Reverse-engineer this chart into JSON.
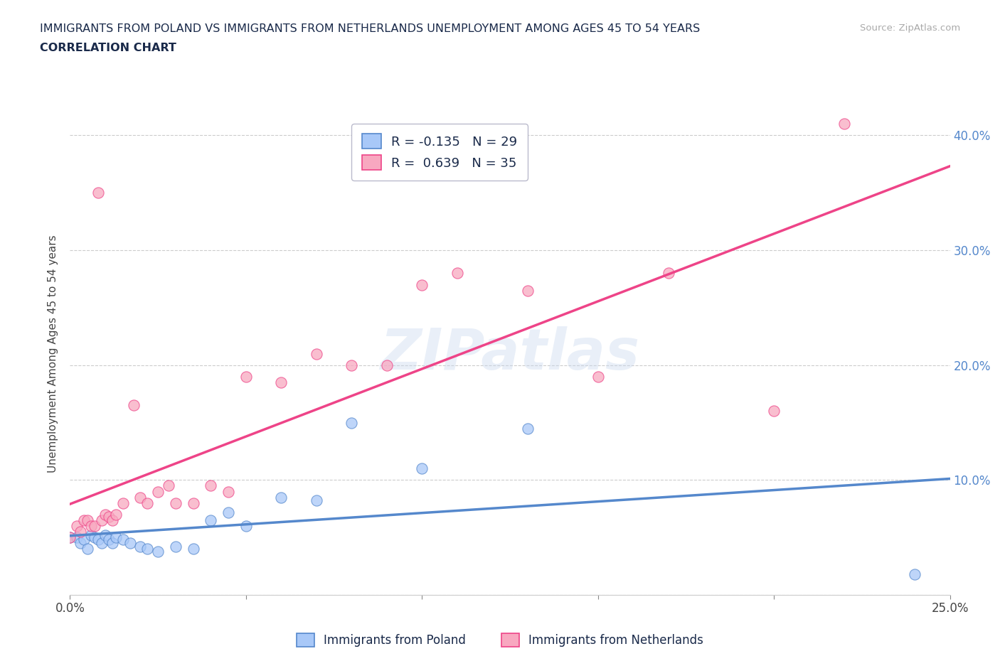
{
  "title_line1": "IMMIGRANTS FROM POLAND VS IMMIGRANTS FROM NETHERLANDS UNEMPLOYMENT AMONG AGES 45 TO 54 YEARS",
  "title_line2": "CORRELATION CHART",
  "source": "Source: ZipAtlas.com",
  "ylabel": "Unemployment Among Ages 45 to 54 years",
  "xlim": [
    0.0,
    0.25
  ],
  "ylim": [
    0.0,
    0.42
  ],
  "x_ticks": [
    0.0,
    0.05,
    0.1,
    0.15,
    0.2,
    0.25
  ],
  "y_ticks": [
    0.0,
    0.1,
    0.2,
    0.3,
    0.4
  ],
  "watermark": "ZIPatlas",
  "color_poland": "#a8c8f8",
  "color_netherlands": "#f8a8c0",
  "color_line_poland": "#5588cc",
  "color_line_netherlands": "#ee4488",
  "poland_x": [
    0.0,
    0.002,
    0.003,
    0.004,
    0.005,
    0.006,
    0.007,
    0.008,
    0.009,
    0.01,
    0.011,
    0.012,
    0.013,
    0.015,
    0.017,
    0.02,
    0.022,
    0.025,
    0.03,
    0.035,
    0.04,
    0.045,
    0.05,
    0.06,
    0.07,
    0.08,
    0.1,
    0.13,
    0.24
  ],
  "poland_y": [
    0.05,
    0.05,
    0.045,
    0.048,
    0.04,
    0.052,
    0.05,
    0.048,
    0.045,
    0.052,
    0.048,
    0.045,
    0.05,
    0.048,
    0.045,
    0.042,
    0.04,
    0.038,
    0.042,
    0.04,
    0.065,
    0.072,
    0.06,
    0.085,
    0.082,
    0.15,
    0.11,
    0.145,
    0.018
  ],
  "netherlands_x": [
    0.0,
    0.002,
    0.003,
    0.004,
    0.005,
    0.006,
    0.007,
    0.008,
    0.009,
    0.01,
    0.011,
    0.012,
    0.013,
    0.015,
    0.018,
    0.02,
    0.022,
    0.025,
    0.028,
    0.03,
    0.035,
    0.04,
    0.045,
    0.05,
    0.06,
    0.07,
    0.08,
    0.09,
    0.1,
    0.11,
    0.13,
    0.15,
    0.17,
    0.2,
    0.22
  ],
  "netherlands_y": [
    0.05,
    0.06,
    0.055,
    0.065,
    0.065,
    0.06,
    0.06,
    0.35,
    0.065,
    0.07,
    0.068,
    0.065,
    0.07,
    0.08,
    0.165,
    0.085,
    0.08,
    0.09,
    0.095,
    0.08,
    0.08,
    0.095,
    0.09,
    0.19,
    0.185,
    0.21,
    0.2,
    0.2,
    0.27,
    0.28,
    0.265,
    0.19,
    0.28,
    0.16,
    0.41
  ],
  "background_color": "#ffffff",
  "grid_color": "#cccccc",
  "title_color": "#1a2a4a",
  "axis_label_color": "#444444",
  "right_tick_color": "#5588cc",
  "legend_text_color": "#1a2a4a",
  "source_color": "#aaaaaa"
}
